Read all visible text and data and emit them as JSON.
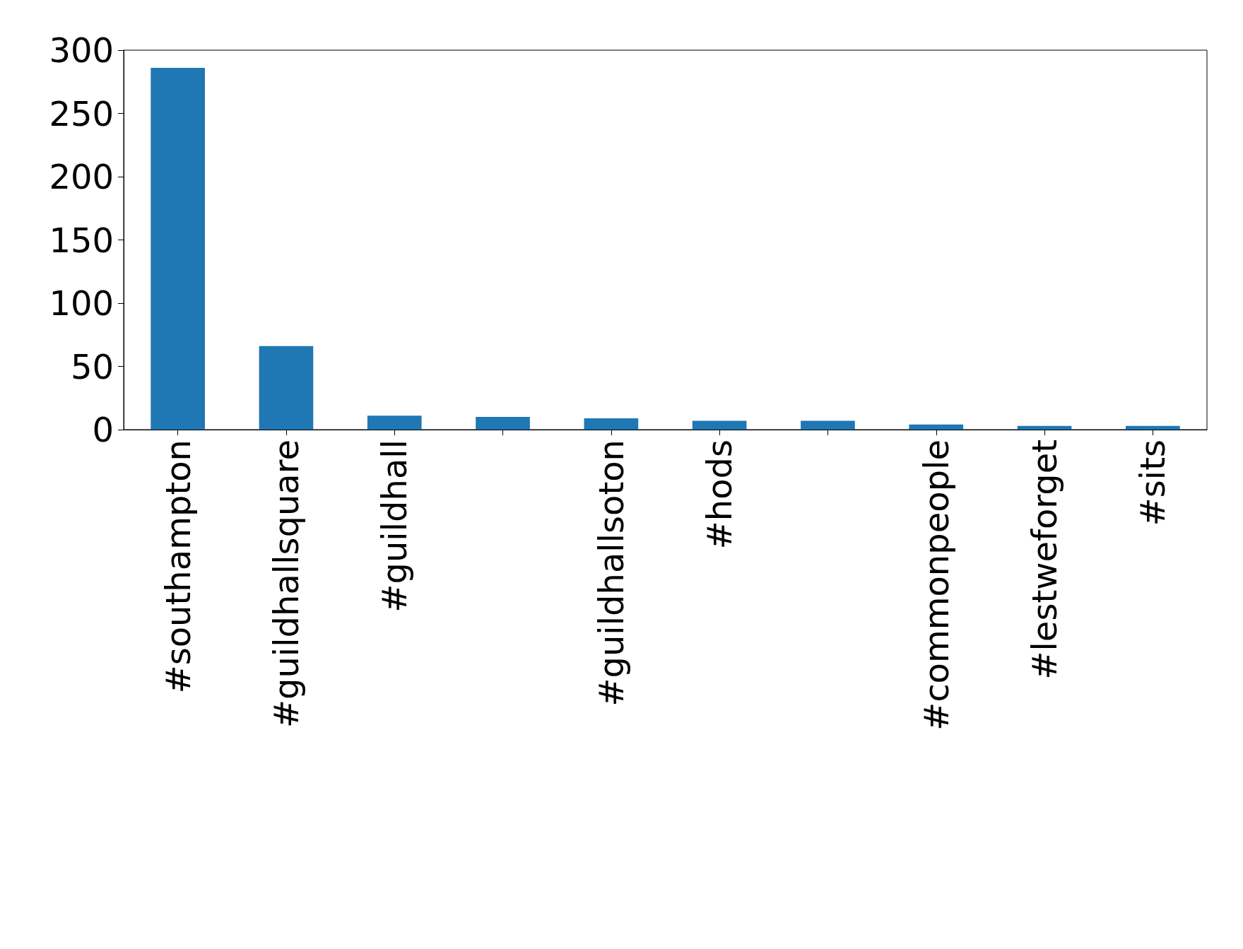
{
  "chart_data": {
    "type": "bar",
    "categories": [
      "#southampton",
      "#guildhallsquare",
      "#guildhall",
      null,
      "#guildhallsoton",
      "#hods",
      null,
      "#commonpeople",
      "#lestweforget",
      "#sits"
    ],
    "values": [
      286,
      66,
      11,
      10,
      9,
      7,
      7,
      4,
      3,
      3
    ],
    "color": "#1f77b4",
    "ylim": [
      0,
      300
    ],
    "yticks": [
      0,
      50,
      100,
      150,
      200,
      250,
      300
    ],
    "grid": false
  }
}
